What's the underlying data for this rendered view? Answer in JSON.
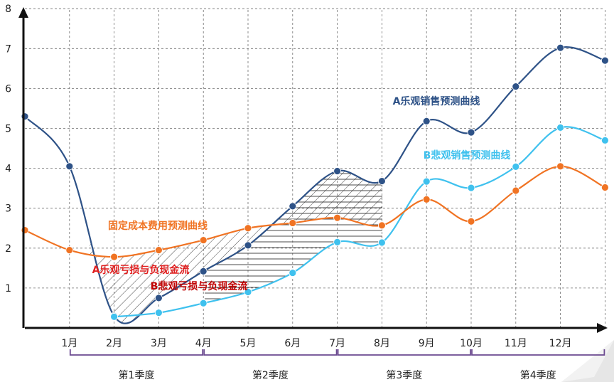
{
  "chart_data": {
    "type": "line",
    "x_categories": [
      "",
      "1月",
      "2月",
      "3月",
      "4月",
      "5月",
      "6月",
      "7月",
      "8月",
      "9月",
      "10月",
      "11月",
      "12月",
      ""
    ],
    "y_ticks": [
      "1",
      "2",
      "3",
      "4",
      "5",
      "6",
      "7",
      "8"
    ],
    "ylim": [
      0,
      8
    ],
    "grid": true,
    "series": [
      {
        "name": "A乐观销售预测曲线",
        "color": "#2E5287",
        "values": [
          5.3,
          4.05,
          0.3,
          0.75,
          1.42,
          2.07,
          3.05,
          3.93,
          3.68,
          5.18,
          4.9,
          6.05,
          7.02,
          6.7
        ]
      },
      {
        "name": "B悲观销售预测曲线",
        "color": "#3FC1EE",
        "values": [
          null,
          null,
          0.28,
          0.38,
          0.62,
          0.9,
          1.38,
          2.15,
          2.14,
          3.67,
          3.51,
          4.04,
          5.02,
          4.7
        ]
      },
      {
        "name": "固定成本费用预测曲线",
        "color": "#F07323",
        "values": [
          2.45,
          1.95,
          1.78,
          1.95,
          2.2,
          2.5,
          2.63,
          2.76,
          2.57,
          3.22,
          2.67,
          3.44,
          4.05,
          3.52
        ]
      }
    ],
    "annotations": [
      {
        "text": "A乐观销售预测曲线",
        "color": "#2E5287"
      },
      {
        "text": "B悲观销售预测曲线",
        "color": "#3FC1EE"
      },
      {
        "text": "固定成本费用预测曲线",
        "color": "#F07323"
      },
      {
        "text": "A乐观亏损与负现金流",
        "color": "#E02020"
      },
      {
        "text": "B悲观亏损与负现金流",
        "color": "#C00000"
      }
    ],
    "quarters": [
      "第1季度",
      "第2季度",
      "第3季度",
      "第4季度"
    ]
  }
}
